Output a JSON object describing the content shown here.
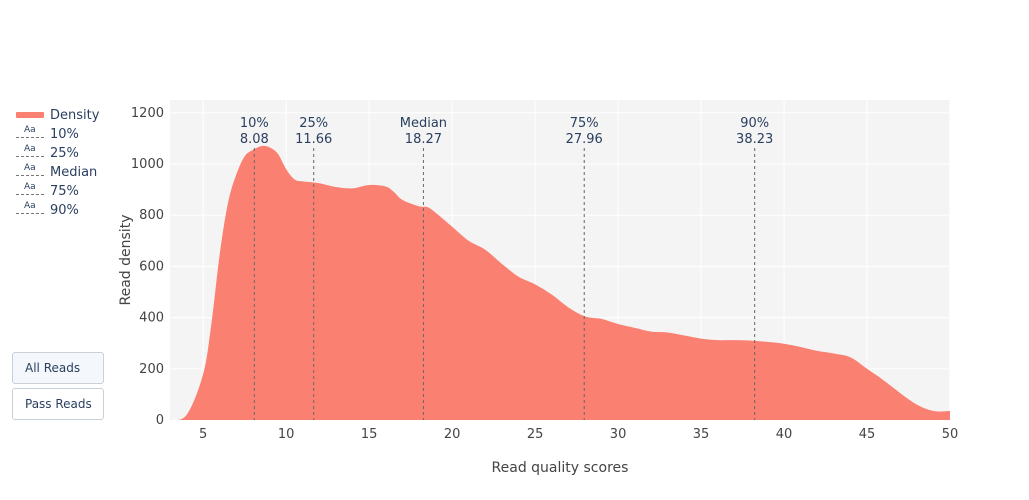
{
  "chart_data": {
    "type": "area",
    "xlabel": "Read quality scores",
    "ylabel": "Read density",
    "xlim": [
      3,
      50
    ],
    "ylim": [
      0,
      1250
    ],
    "x_ticks": [
      5,
      10,
      15,
      20,
      25,
      30,
      35,
      40,
      45,
      50
    ],
    "y_ticks": [
      0,
      200,
      400,
      600,
      800,
      1000,
      1200
    ],
    "grid": true,
    "series": [
      {
        "name": "Density",
        "color": "#fa8072",
        "x": [
          3,
          4,
          5,
          5.5,
          6,
          6.5,
          7,
          7.5,
          8,
          8.5,
          9,
          9.5,
          10,
          10.5,
          11,
          12,
          13,
          14,
          15,
          16,
          16.5,
          17,
          18,
          18.5,
          19,
          20,
          21,
          22,
          23,
          24,
          25,
          26,
          27,
          28,
          29,
          30,
          31,
          32,
          33,
          34,
          35,
          36,
          37,
          38,
          39,
          40,
          41,
          42,
          43,
          44,
          45,
          46,
          47,
          48,
          49,
          50
        ],
        "y": [
          0,
          20,
          180,
          380,
          650,
          850,
          960,
          1030,
          1055,
          1070,
          1065,
          1040,
          980,
          940,
          932,
          925,
          910,
          905,
          918,
          912,
          890,
          860,
          835,
          832,
          810,
          755,
          700,
          665,
          610,
          560,
          530,
          490,
          440,
          405,
          395,
          375,
          360,
          345,
          342,
          330,
          318,
          312,
          312,
          310,
          305,
          298,
          285,
          270,
          260,
          245,
          200,
          155,
          105,
          60,
          35,
          35
        ]
      }
    ],
    "annotations": [
      {
        "name": "10%",
        "value": 8.08,
        "label": "10%",
        "value_label": "8.08"
      },
      {
        "name": "25%",
        "value": 11.66,
        "label": "25%",
        "value_label": "11.66"
      },
      {
        "name": "Median",
        "value": 18.27,
        "label": "Median",
        "value_label": "18.27"
      },
      {
        "name": "75%",
        "value": 27.96,
        "label": "75%",
        "value_label": "27.96"
      },
      {
        "name": "90%",
        "value": 38.23,
        "label": "90%",
        "value_label": "38.23"
      }
    ],
    "legend": {
      "placement": "left",
      "items": [
        "Density",
        "10%",
        "25%",
        "Median",
        "75%",
        "90%"
      ],
      "marker_text": "Aa"
    }
  },
  "buttons": {
    "all_reads": "All Reads",
    "pass_reads": "Pass Reads"
  }
}
